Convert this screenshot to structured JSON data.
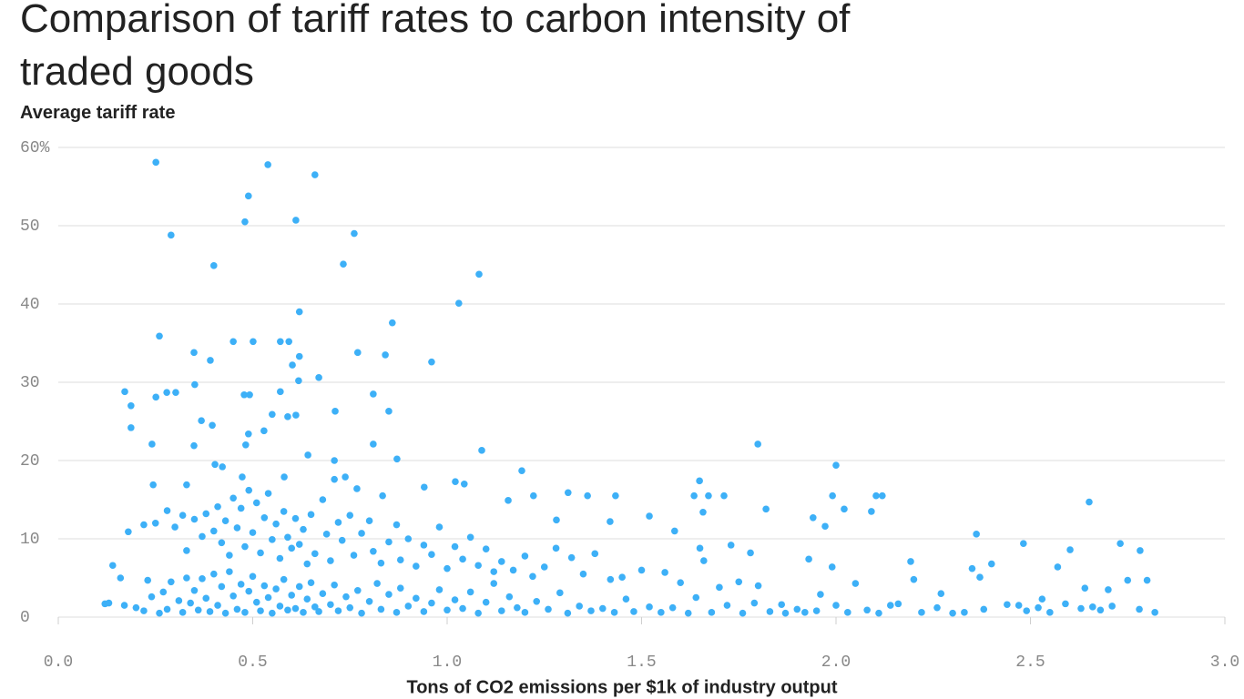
{
  "chart_data": {
    "type": "scatter",
    "title": "Comparison of tariff rates to carbon intensity of traded goods",
    "y_label": "Average tariff rate",
    "x_label": "Tons of CO2 emissions per $1k of industry output",
    "color": "#3db0f7",
    "xlim": [
      0,
      3
    ],
    "ylim": [
      0,
      60
    ],
    "xticks": [
      {
        "value": 0,
        "label": "0.0"
      },
      0.5,
      {
        "value": 1,
        "label": "1.0"
      },
      1.5,
      {
        "value": 2,
        "label": "2.0"
      },
      2.5,
      {
        "value": 3,
        "label": "3.0"
      }
    ],
    "yticks": [
      0,
      10,
      20,
      30,
      40,
      50,
      {
        "value": 60,
        "label": "60%"
      }
    ],
    "grid": true,
    "x": [
      0.251,
      0.539,
      0.66,
      0.489,
      0.48,
      0.611,
      0.29,
      0.761,
      0.4,
      0.733,
      1.082,
      1.03,
      0.62,
      0.859,
      0.26,
      0.45,
      0.501,
      0.571,
      0.593,
      0.349,
      0.77,
      0.841,
      0.62,
      0.391,
      0.602,
      0.96,
      0.67,
      0.618,
      0.171,
      0.279,
      0.302,
      0.251,
      0.478,
      0.492,
      0.81,
      0.351,
      0.571,
      0.187,
      0.85,
      0.712,
      0.55,
      0.59,
      0.611,
      0.187,
      0.368,
      0.396,
      0.529,
      0.489,
      0.241,
      0.349,
      0.482,
      0.81,
      1.089,
      0.642,
      0.871,
      1.799,
      2.0,
      0.71,
      0.403,
      0.422,
      1.192,
      2.651,
      2.731,
      2.782,
      2.361,
      2.482,
      2.602,
      2.192,
      2.021,
      1.991,
      2.103,
      2.119,
      2.091,
      1.972,
      1.941,
      1.82,
      1.649,
      1.635,
      1.672,
      1.712,
      1.658,
      1.585,
      1.52,
      1.433,
      1.361,
      1.311,
      1.281,
      1.419,
      1.021,
      1.044,
      1.222,
      1.157,
      0.941,
      0.834,
      0.768,
      0.71,
      0.738,
      0.581,
      0.473,
      0.244,
      0.33,
      0.18,
      0.22,
      0.25,
      0.28,
      0.3,
      0.32,
      0.33,
      0.35,
      0.37,
      0.38,
      0.4,
      0.41,
      0.42,
      0.43,
      0.44,
      0.45,
      0.46,
      0.47,
      0.48,
      0.49,
      0.5,
      0.51,
      0.52,
      0.53,
      0.54,
      0.55,
      0.56,
      0.57,
      0.58,
      0.59,
      0.6,
      0.61,
      0.62,
      0.63,
      0.64,
      0.65,
      0.66,
      0.68,
      0.69,
      0.7,
      0.72,
      0.73,
      0.75,
      0.76,
      0.78,
      0.8,
      0.81,
      0.83,
      0.85,
      0.87,
      0.88,
      0.9,
      0.92,
      0.94,
      0.96,
      0.98,
      1.0,
      1.02,
      1.04,
      1.06,
      1.08,
      1.1,
      1.12,
      1.14,
      1.17,
      1.2,
      1.22,
      1.25,
      1.28,
      1.32,
      1.35,
      1.38,
      1.42,
      1.45,
      1.5,
      1.56,
      1.6,
      1.65,
      1.66,
      1.7,
      1.73,
      1.75,
      1.78,
      1.8,
      1.86,
      1.93,
      1.96,
      1.99,
      2.05,
      2.14,
      2.2,
      2.27,
      2.35,
      2.37,
      2.4,
      2.47,
      2.53,
      2.57,
      2.64,
      2.66,
      2.7,
      2.75,
      2.8,
      0.12,
      0.13,
      0.14,
      0.16,
      0.17,
      0.2,
      0.22,
      0.23,
      0.24,
      0.26,
      0.27,
      0.28,
      0.29,
      0.31,
      0.32,
      0.33,
      0.34,
      0.35,
      0.36,
      0.37,
      0.38,
      0.39,
      0.4,
      0.41,
      0.42,
      0.43,
      0.44,
      0.45,
      0.46,
      0.47,
      0.48,
      0.49,
      0.5,
      0.51,
      0.52,
      0.53,
      0.54,
      0.55,
      0.56,
      0.57,
      0.58,
      0.59,
      0.6,
      0.61,
      0.62,
      0.63,
      0.64,
      0.65,
      0.66,
      0.67,
      0.68,
      0.7,
      0.71,
      0.72,
      0.74,
      0.75,
      0.77,
      0.78,
      0.8,
      0.82,
      0.83,
      0.85,
      0.87,
      0.88,
      0.9,
      0.92,
      0.94,
      0.96,
      0.98,
      1.0,
      1.02,
      1.04,
      1.06,
      1.08,
      1.1,
      1.12,
      1.14,
      1.16,
      1.18,
      1.2,
      1.23,
      1.26,
      1.29,
      1.31,
      1.34,
      1.37,
      1.4,
      1.43,
      1.46,
      1.48,
      1.52,
      1.55,
      1.58,
      1.62,
      1.64,
      1.68,
      1.72,
      1.76,
      1.79,
      1.83,
      1.87,
      1.9,
      1.92,
      1.95,
      2.0,
      2.03,
      2.08,
      2.11,
      2.16,
      2.22,
      2.26,
      2.3,
      2.33,
      2.38,
      2.44,
      2.49,
      2.52,
      2.55,
      2.59,
      2.63,
      2.68,
      2.71,
      2.78,
      2.82
    ],
    "y": [
      58.1,
      57.8,
      56.5,
      53.8,
      50.5,
      50.7,
      48.8,
      49.0,
      44.9,
      45.1,
      43.8,
      40.1,
      39.0,
      37.6,
      35.9,
      35.2,
      35.2,
      35.2,
      35.2,
      33.8,
      33.8,
      33.5,
      33.3,
      32.8,
      32.2,
      32.6,
      30.6,
      30.2,
      28.8,
      28.7,
      28.7,
      28.1,
      28.4,
      28.4,
      28.5,
      29.7,
      28.8,
      27.0,
      26.3,
      26.3,
      25.9,
      25.6,
      25.8,
      24.2,
      25.1,
      24.5,
      23.8,
      23.4,
      22.1,
      21.9,
      22.0,
      22.1,
      21.3,
      20.7,
      20.2,
      22.1,
      19.4,
      20.0,
      19.5,
      19.2,
      18.7,
      14.7,
      9.4,
      8.5,
      10.6,
      9.4,
      8.6,
      7.1,
      13.8,
      15.5,
      15.5,
      15.5,
      13.5,
      11.6,
      12.7,
      13.8,
      17.4,
      15.5,
      15.5,
      15.5,
      13.4,
      11.0,
      12.9,
      15.5,
      15.5,
      15.9,
      12.4,
      12.2,
      17.3,
      17.0,
      15.5,
      14.9,
      16.6,
      15.5,
      16.4,
      17.6,
      17.9,
      17.9,
      17.9,
      16.9,
      16.9,
      10.9,
      11.8,
      12.0,
      13.6,
      11.5,
      13.0,
      8.5,
      12.5,
      10.3,
      13.2,
      11.0,
      14.1,
      9.5,
      12.3,
      7.9,
      15.2,
      11.4,
      13.9,
      9.0,
      16.2,
      10.8,
      14.6,
      8.2,
      12.7,
      15.8,
      9.9,
      11.9,
      7.5,
      13.5,
      10.2,
      8.8,
      12.6,
      9.3,
      11.2,
      6.8,
      13.1,
      8.1,
      15.0,
      10.6,
      7.2,
      12.1,
      9.8,
      13.0,
      7.9,
      10.7,
      12.3,
      8.4,
      6.9,
      9.6,
      11.8,
      7.3,
      10.0,
      6.5,
      9.2,
      8.0,
      11.5,
      6.2,
      9.0,
      7.4,
      10.2,
      6.6,
      8.7,
      5.8,
      7.1,
      6.0,
      7.8,
      5.2,
      6.4,
      8.8,
      7.6,
      5.5,
      8.1,
      4.8,
      5.1,
      6.0,
      5.7,
      4.4,
      8.8,
      7.2,
      3.8,
      9.2,
      4.5,
      8.2,
      4.0,
      1.6,
      7.4,
      2.9,
      6.4,
      4.3,
      1.5,
      4.8,
      3.0,
      6.2,
      5.1,
      6.8,
      1.5,
      2.3,
      6.4,
      3.7,
      1.3,
      3.5,
      4.7,
      4.7,
      1.7,
      1.8,
      6.6,
      5.0,
      1.5,
      1.2,
      0.8,
      4.7,
      2.6,
      0.5,
      3.2,
      1.0,
      4.5,
      2.1,
      0.6,
      5.0,
      1.8,
      3.4,
      0.9,
      4.9,
      2.4,
      0.7,
      5.5,
      1.5,
      3.9,
      0.5,
      5.8,
      2.7,
      1.0,
      4.2,
      0.6,
      3.3,
      5.2,
      1.9,
      0.8,
      4.0,
      2.5,
      0.5,
      3.6,
      1.4,
      4.8,
      0.9,
      2.8,
      1.1,
      3.9,
      0.6,
      2.3,
      4.4,
      1.3,
      0.7,
      3.0,
      1.6,
      4.1,
      0.8,
      2.6,
      1.2,
      3.4,
      0.5,
      2.0,
      4.3,
      1.0,
      2.9,
      0.6,
      3.7,
      1.4,
      2.4,
      0.7,
      1.8,
      3.5,
      0.9,
      2.2,
      1.1,
      3.2,
      0.5,
      1.9,
      4.3,
      0.8,
      2.6,
      1.2,
      0.6,
      2.0,
      1.0,
      3.1,
      0.5,
      1.4,
      0.8,
      1.1,
      0.6,
      2.3,
      0.7,
      1.3,
      0.6,
      1.2,
      0.5,
      2.5,
      0.6,
      1.5,
      0.5,
      1.8,
      0.7,
      0.5,
      1.0,
      0.6,
      0.8,
      1.5,
      0.6,
      0.9,
      0.5,
      1.7,
      0.6,
      1.2,
      0.5,
      0.6,
      1.0,
      1.6,
      0.8,
      1.2,
      0.6,
      1.7,
      1.1,
      0.9,
      1.4,
      1.0,
      0.6
    ]
  }
}
